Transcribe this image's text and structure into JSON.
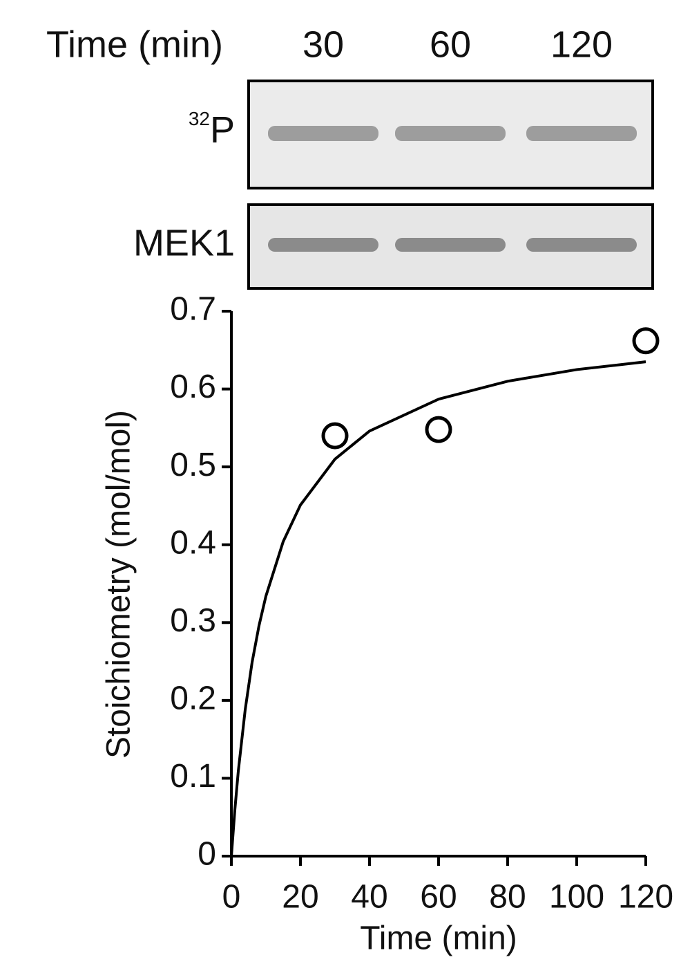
{
  "gel": {
    "header": "Time (min)",
    "lanes": [
      "30",
      "60",
      "120"
    ],
    "rows": [
      {
        "sup": "32",
        "label": "P"
      },
      {
        "label": "MEK1"
      }
    ]
  },
  "chart_data": {
    "type": "scatter",
    "x_label": "Time (min)",
    "y_label": "Stoichiometry (mol/mol)",
    "points": {
      "x": [
        30,
        60,
        120
      ],
      "y": [
        0.54,
        0.548,
        0.662
      ]
    },
    "fit": {
      "x": [
        0,
        1,
        2,
        4,
        6,
        8,
        10,
        15,
        20,
        30,
        40,
        60,
        80,
        100,
        120
      ],
      "y": [
        0,
        0.059,
        0.109,
        0.188,
        0.249,
        0.296,
        0.334,
        0.404,
        0.451,
        0.51,
        0.546,
        0.587,
        0.61,
        0.625,
        0.635
      ]
    },
    "xlim": [
      0,
      120
    ],
    "xticks": [
      0,
      20,
      40,
      60,
      80,
      100,
      120
    ],
    "ylim": [
      0,
      0.7
    ],
    "yticks": [
      0,
      0.1,
      0.2,
      0.3,
      0.4,
      0.5,
      0.6,
      0.7
    ],
    "color": "#000000"
  }
}
